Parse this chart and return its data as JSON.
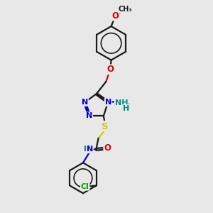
{
  "bg_color": "#e8e8e8",
  "bond_color": "#1a1a1a",
  "N_color": "#0000dd",
  "O_color": "#dd0000",
  "S_color": "#cccc00",
  "Cl_color": "#00aa00",
  "NH_color": "#008888",
  "lw": 1.6,
  "fs": 8.0,
  "xlim": [
    0.8,
    5.5
  ],
  "ylim": [
    0.2,
    9.2
  ]
}
